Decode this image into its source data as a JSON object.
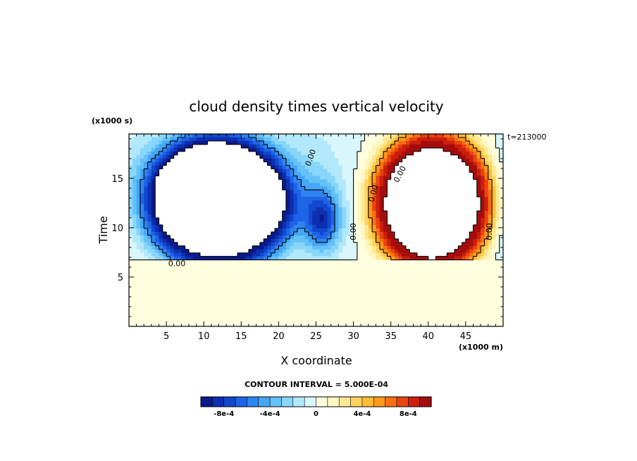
{
  "chart_data": {
    "type": "heatmap",
    "title": "cloud density times vertical velocity",
    "xlabel": "X coordinate",
    "ylabel": "Time",
    "x_unit_label": "(x1000 m)",
    "y_unit_label": "(x1000 s)",
    "timestamp": "t=213000",
    "xlim": [
      0,
      50
    ],
    "ylim": [
      0,
      19.5
    ],
    "x_ticks": [
      5,
      10,
      15,
      20,
      25,
      30,
      35,
      40,
      45
    ],
    "y_ticks": [
      5,
      10,
      15
    ],
    "contour_interval_text": "CONTOUR INTERVAL = 5.000E-04",
    "contour_labels": [
      "0.00",
      "0.00",
      "0.00",
      "0.00",
      "0.00",
      "0.00"
    ],
    "colorbar": {
      "levels": [
        -0.001,
        -0.0009,
        -0.0008,
        -0.0007,
        -0.0006,
        -0.0005,
        -0.0004,
        -0.0003,
        -0.0002,
        -0.0001,
        0,
        0.0001,
        0.0002,
        0.0003,
        0.0004,
        0.0005,
        0.0006,
        0.0007,
        0.0008,
        0.0009,
        0.001
      ],
      "colors": [
        "#0a1a8c",
        "#0d2fb0",
        "#1248d0",
        "#1e64e6",
        "#2f85f0",
        "#45a6f5",
        "#63c1f8",
        "#88d6fa",
        "#b2e8fb",
        "#d8f6fb",
        "#ffffe0",
        "#fff6c0",
        "#ffe892",
        "#ffd45e",
        "#ffbb36",
        "#ff9a1c",
        "#f77014",
        "#e84410",
        "#cc1f0c",
        "#a50d0d"
      ],
      "tick_labels": [
        "-8e-4",
        "-4e-4",
        "0",
        "4e-4",
        "8e-4"
      ],
      "tick_values": [
        -0.0008,
        -0.0004,
        0,
        0.0004,
        0.0008
      ]
    },
    "features": [
      {
        "name": "negative-ring",
        "center": [
          12,
          12.5
        ],
        "min_value": -0.001
      },
      {
        "name": "negative-blob",
        "center": [
          25.8,
          10.8
        ],
        "min_value": -0.0007
      },
      {
        "name": "positive-ring",
        "center": [
          40.5,
          12.5
        ],
        "max_value": 0.001
      }
    ]
  }
}
